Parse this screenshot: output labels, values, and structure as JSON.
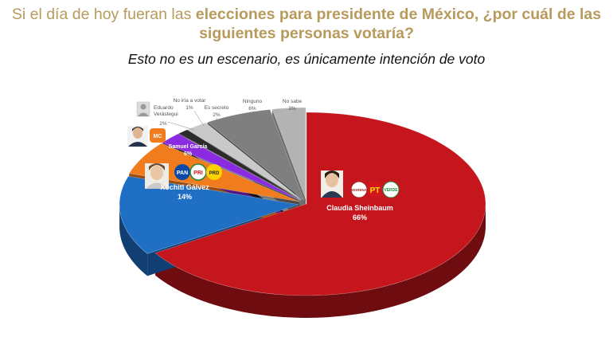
{
  "title": {
    "part1": "Si el día de hoy fueran las ",
    "part2_bold": "elecciones para presidente de México, ¿por cuál de las siguientes personas votaría?"
  },
  "subtitle": "Esto no es un escenario, es únicamente intención de voto",
  "chart_data": {
    "type": "pie",
    "style": "3d-exploded-first-slice",
    "title": "Si el día de hoy fueran las elecciones para presidente de México, ¿por cuál de las siguientes personas votaría?",
    "subtitle": "Esto no es un escenario, es únicamente intención de voto",
    "slices": [
      {
        "label": "Claudia Sheinbaum",
        "value": 66,
        "display": "66%",
        "color": "#c4161c",
        "side": "#6e0c10",
        "party_logos": [
          "MORENA",
          "PT",
          "PVEM"
        ]
      },
      {
        "label": "Xóchitl Gálvez",
        "value": 14,
        "display": "14%",
        "color": "#1f6fc5",
        "side": "#123f73",
        "party_logos": [
          "PAN",
          "PRI",
          "PRD"
        ]
      },
      {
        "label": "Samuel García",
        "value": 6,
        "display": "6%",
        "color": "#f07c1e",
        "side": "#9b4c10",
        "party_logos": [
          "MC"
        ]
      },
      {
        "label": "Eduardo Verástegui",
        "value": 2,
        "display": "2%",
        "color": "#8a2be2",
        "side": "#4f1885"
      },
      {
        "label": "No iría a votar",
        "value": 1,
        "display": "1%",
        "color": "#2b2b2b",
        "side": "#111111"
      },
      {
        "label": "Es secreto",
        "value": 2,
        "display": "2%",
        "color": "#c9c9c9",
        "side": "#7a7a7a"
      },
      {
        "label": "Ninguno",
        "value": 6,
        "display": "6%",
        "color": "#7f7f7f",
        "side": "#4a4a4a"
      },
      {
        "label": "No sabe",
        "value": 3,
        "display": "3%",
        "color": "#b3b3b3",
        "side": "#6d6d6d"
      }
    ]
  },
  "logos": {
    "morena": "MORENA",
    "pt": "PT",
    "pvem": "VERDE",
    "pan": "PAN",
    "pri": "PRI",
    "prd": "PRD",
    "mc": "MC"
  }
}
